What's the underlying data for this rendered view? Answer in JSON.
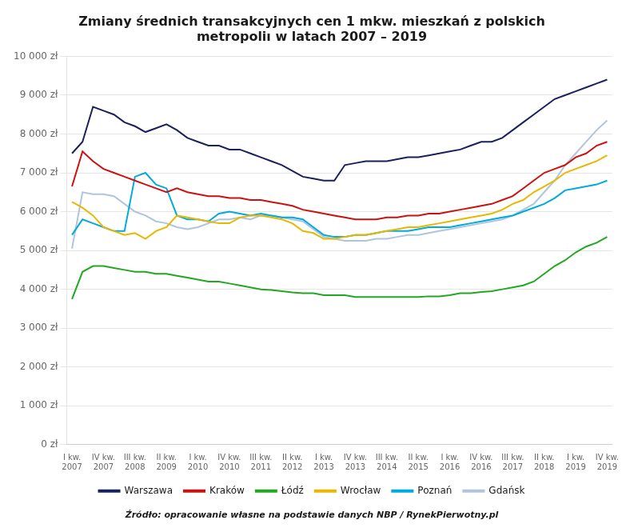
{
  "chart_data": {
    "type": "line",
    "title": "Zmiany średnich transakcyjnych cen 1 mkw. mieszkań z polskich\nmetropoliı w latach 2007 – 2019",
    "annotation": "Źródło: opracowanie własne na podstawie danych NBP / RynekPierwotny.pl",
    "categories": [
      "I kw.\n2007",
      null,
      null,
      "IV kw.\n2007",
      null,
      null,
      "III kw.\n2008",
      null,
      null,
      "II kw.\n2009",
      null,
      null,
      "I kw.\n2010",
      null,
      null,
      "IV kw.\n2010",
      null,
      null,
      "III kw.\n2011",
      null,
      null,
      "II kw.\n2012",
      null,
      null,
      "I kw.\n2013",
      null,
      null,
      "IV kw.\n2013",
      null,
      null,
      "III kw.\n2014",
      null,
      null,
      "II kw.\n2015",
      null,
      null,
      "I kw.\n2016",
      null,
      null,
      "IV kw.\n2016",
      null,
      null,
      "III kw.\n2017",
      null,
      null,
      "II kw.\n2018",
      null,
      null,
      "I kw.\n2019",
      null,
      null,
      "IV kw.\n2019"
    ],
    "series": [
      {
        "name": "Warszawa",
        "color": "#1a1f5e",
        "values": [
          7500,
          7800,
          8700,
          8600,
          8500,
          8300,
          8200,
          8050,
          8150,
          8250,
          8100,
          7900,
          7800,
          7700,
          7700,
          7600,
          7600,
          7500,
          7400,
          7300,
          7200,
          7050,
          6900,
          6850,
          6800,
          6800,
          7200,
          7250,
          7300,
          7300,
          7300,
          7350,
          7400,
          7400,
          7450,
          7500,
          7550,
          7600,
          7700,
          7800,
          7800,
          7900,
          8100,
          8300,
          8500,
          8700,
          8900,
          9000,
          9100,
          9200,
          9300,
          9400
        ]
      },
      {
        "name": "Kraków",
        "color": "#cc1111",
        "values": [
          6650,
          7550,
          7300,
          7100,
          7000,
          6900,
          6800,
          6700,
          6600,
          6500,
          6600,
          6500,
          6450,
          6400,
          6400,
          6350,
          6350,
          6300,
          6300,
          6250,
          6200,
          6150,
          6050,
          6000,
          5950,
          5900,
          5850,
          5800,
          5800,
          5800,
          5850,
          5850,
          5900,
          5900,
          5950,
          5950,
          6000,
          6050,
          6100,
          6150,
          6200,
          6300,
          6400,
          6600,
          6800,
          7000,
          7100,
          7200,
          7400,
          7500,
          7700,
          7800
        ]
      },
      {
        "name": "Łódź",
        "color": "#22a820",
        "values": [
          3750,
          4450,
          4600,
          4600,
          4550,
          4500,
          4450,
          4450,
          4400,
          4400,
          4350,
          4300,
          4250,
          4200,
          4200,
          4150,
          4100,
          4050,
          4000,
          3980,
          3950,
          3920,
          3900,
          3900,
          3850,
          3850,
          3850,
          3800,
          3800,
          3800,
          3800,
          3800,
          3800,
          3800,
          3820,
          3820,
          3850,
          3900,
          3900,
          3930,
          3950,
          4000,
          4050,
          4100,
          4200,
          4400,
          4600,
          4750,
          4950,
          5100,
          5200,
          5350
        ]
      },
      {
        "name": "Wrocław",
        "color": "#e8b800",
        "values": [
          6250,
          6100,
          5900,
          5600,
          5500,
          5400,
          5450,
          5300,
          5500,
          5600,
          5900,
          5850,
          5800,
          5750,
          5700,
          5700,
          5850,
          5900,
          5900,
          5850,
          5800,
          5700,
          5500,
          5450,
          5300,
          5300,
          5350,
          5400,
          5400,
          5450,
          5500,
          5550,
          5600,
          5600,
          5650,
          5700,
          5750,
          5800,
          5850,
          5900,
          5950,
          6050,
          6200,
          6300,
          6500,
          6650,
          6800,
          7000,
          7100,
          7200,
          7300,
          7450
        ]
      },
      {
        "name": "Poznań",
        "color": "#00aadd",
        "values": [
          5400,
          5800,
          5700,
          5600,
          5500,
          5500,
          6900,
          7000,
          6700,
          6600,
          5900,
          5800,
          5800,
          5750,
          5950,
          6000,
          5950,
          5900,
          5950,
          5900,
          5850,
          5850,
          5800,
          5600,
          5400,
          5350,
          5350,
          5400,
          5400,
          5450,
          5500,
          5500,
          5500,
          5550,
          5600,
          5600,
          5600,
          5650,
          5700,
          5750,
          5800,
          5850,
          5900,
          6000,
          6100,
          6200,
          6350,
          6550,
          6600,
          6650,
          6700,
          6800
        ]
      },
      {
        "name": "Gdańsk",
        "color": "#b0c4de",
        "values": [
          5050,
          6500,
          6450,
          6450,
          6400,
          6200,
          6000,
          5900,
          5750,
          5700,
          5600,
          5550,
          5600,
          5700,
          5800,
          5800,
          5850,
          5800,
          5900,
          5900,
          5850,
          5800,
          5750,
          5550,
          5350,
          5300,
          5250,
          5250,
          5250,
          5300,
          5300,
          5350,
          5400,
          5400,
          5450,
          5500,
          5550,
          5600,
          5650,
          5700,
          5750,
          5800,
          5900,
          6050,
          6200,
          6500,
          6800,
          7200,
          7500,
          7800,
          8100,
          8350
        ]
      }
    ],
    "ylim": [
      0,
      10000
    ],
    "yticks": [
      {
        "value": 0,
        "label": "0 zł"
      },
      {
        "value": 1000,
        "label": "1 000 zł"
      },
      {
        "value": 2000,
        "label": "2 000 zł"
      },
      {
        "value": 3000,
        "label": "3 000 zł"
      },
      {
        "value": 4000,
        "label": "4 000 zł"
      },
      {
        "value": 5000,
        "label": "5 000 zł"
      },
      {
        "value": 6000,
        "label": "6 000 zł"
      },
      {
        "value": 7000,
        "label": "7 000 zł"
      },
      {
        "value": 8000,
        "label": "8 000 zł"
      },
      {
        "value": 9000,
        "label": "9 000 zł"
      },
      {
        "value": 10000,
        "label": "10 000 zł"
      }
    ],
    "grid": "y",
    "legend": "bottom"
  }
}
